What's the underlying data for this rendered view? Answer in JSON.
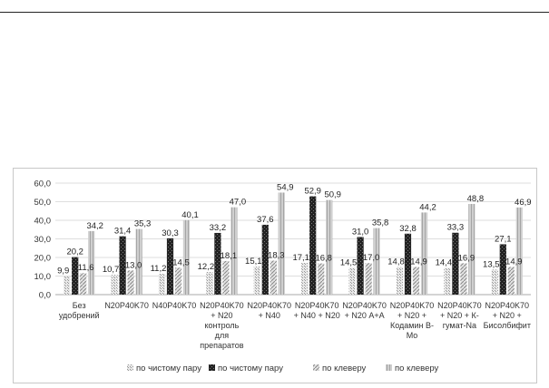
{
  "chart_data": {
    "type": "bar",
    "categories": [
      [
        "Без",
        "удобрений"
      ],
      [
        "N20P40K70"
      ],
      [
        "N40P40K70"
      ],
      [
        "N20P40K70",
        "+ N20",
        "контроль",
        "для",
        "препаратов"
      ],
      [
        "N20P40K70",
        "+ N40"
      ],
      [
        "N20P40K70",
        "+ N40 + N20"
      ],
      [
        "N20P40K70",
        "+ N20 А+А"
      ],
      [
        "N20P40K70",
        "+ N20 +",
        "Кодамин В-",
        "Мо"
      ],
      [
        "N20P40K70",
        "+ N20 + К-",
        "гумат-Na"
      ],
      [
        "N20P40K70",
        "+ N20 +",
        "Бисолбифит"
      ]
    ],
    "series": [
      {
        "name": "по чистому пару",
        "values": [
          9.9,
          10.7,
          11.2,
          12.2,
          15.1,
          17.1,
          14.5,
          14.8,
          14.4,
          13.5
        ],
        "labels": [
          "9,9",
          "10,7",
          "11,2",
          "12,2",
          "15,1",
          "17,1",
          "14,5",
          "14,8",
          "14,4",
          "13,5"
        ]
      },
      {
        "name": "по чистому пару",
        "values": [
          20.2,
          31.4,
          30.3,
          33.2,
          37.6,
          52.9,
          31.0,
          32.8,
          33.3,
          27.1
        ],
        "labels": [
          "20,2",
          "31,4",
          "30,3",
          "33,2",
          "37,6",
          "52,9",
          "31,0",
          "32,8",
          "33,3",
          "27,1"
        ]
      },
      {
        "name": "по клеверу",
        "values": [
          11.6,
          13.0,
          14.5,
          18.1,
          18.3,
          16.8,
          17.0,
          14.9,
          16.9,
          14.9
        ],
        "labels": [
          "11,6",
          "13,0",
          "14,5",
          "18,1",
          "18,3",
          "16,8",
          "17,0",
          "14,9",
          "16,9",
          "14,9"
        ]
      },
      {
        "name": "по клеверу",
        "values": [
          34.2,
          35.3,
          40.1,
          47.0,
          54.9,
          50.9,
          35.8,
          44.2,
          48.8,
          46.9
        ],
        "labels": [
          "34,2",
          "35,3",
          "40,1",
          "47,0",
          "54,9",
          "50,9",
          "35,8",
          "44,2",
          "48,8",
          "46,9"
        ]
      }
    ],
    "yticks": [
      "0,0",
      "10,0",
      "20,0",
      "30,0",
      "40,0",
      "50,0",
      "60,0"
    ],
    "ylim": [
      0,
      60
    ],
    "grid": true,
    "legend_position": "bottom",
    "colors": [
      "#c4c4c4",
      "#2e2e2e",
      "#a8a8a8",
      "#b3b3b3"
    ]
  }
}
